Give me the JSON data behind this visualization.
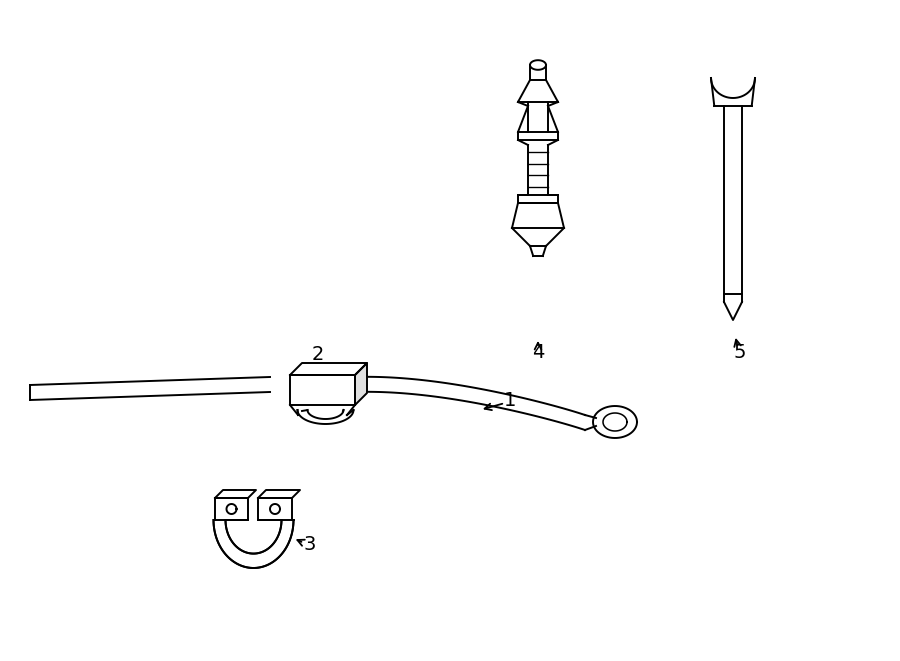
{
  "bg_color": "#ffffff",
  "line_color": "#000000",
  "fig_width": 9.0,
  "fig_height": 6.61
}
